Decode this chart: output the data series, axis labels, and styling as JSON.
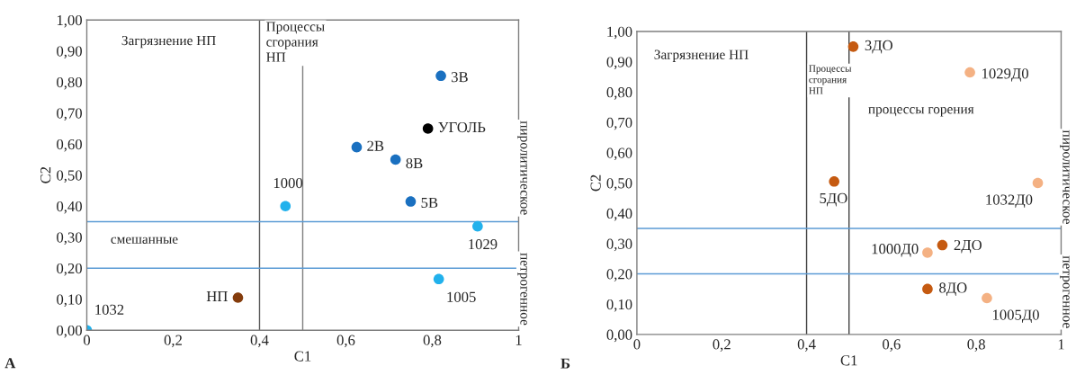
{
  "chart_data": [
    {
      "type": "scatter",
      "xlabel": "C1",
      "ylabel": "C2",
      "marker": "circle",
      "grid": false,
      "legend": false,
      "xlim": [
        0,
        1
      ],
      "ylim": [
        0,
        1
      ],
      "xticks": [
        0,
        {
          "value": 0.2,
          "label": "0,2"
        },
        {
          "value": 0.4,
          "label": "0,4"
        },
        {
          "value": 0.6,
          "label": "0,6"
        },
        {
          "value": 0.8,
          "label": "0,8"
        },
        1
      ],
      "yticks": [
        {
          "value": 0,
          "label": "0,00"
        },
        {
          "value": 0.1,
          "label": "0,10"
        },
        {
          "value": 0.2,
          "label": "0,20"
        },
        {
          "value": 0.3,
          "label": "0,30"
        },
        {
          "value": 0.4,
          "label": "0,40"
        },
        {
          "value": 0.5,
          "label": "0,50"
        },
        {
          "value": 0.6,
          "label": "0,60"
        },
        {
          "value": 0.7,
          "label": "0,70"
        },
        {
          "value": 0.8,
          "label": "0,80"
        },
        {
          "value": 0.9,
          "label": "0,90"
        },
        {
          "value": 1,
          "label": "1,00"
        }
      ],
      "ref_lines": [
        {
          "axis": "x",
          "value": 0.4,
          "color": "#595959"
        },
        {
          "axis": "x",
          "value": 0.5,
          "color": "#7f7f7f"
        },
        {
          "axis": "y",
          "value": 0.2,
          "color": "#5b9bd5"
        },
        {
          "axis": "y",
          "value": 0.35,
          "color": "#5b9bd5"
        }
      ],
      "annotations": [
        "Загрязнение НП",
        "Процессы\nсгорания\nНП",
        "смешанные",
        "пиролитическое",
        "петрогенное",
        "А"
      ],
      "series": [
        {
          "name": "1032",
          "color": "#21b1ec",
          "x": [
            0
          ],
          "values": [
            0
          ]
        },
        {
          "name": "НП",
          "color": "#843c0c",
          "x": [
            0.35
          ],
          "values": [
            0.105
          ]
        },
        {
          "name": "1000",
          "color": "#21b1ec",
          "x": [
            0.46
          ],
          "values": [
            0.4
          ]
        },
        {
          "name": "2В",
          "color": "#1a70c0",
          "x": [
            0.625
          ],
          "values": [
            0.59
          ]
        },
        {
          "name": "8В",
          "color": "#1a70c0",
          "x": [
            0.715
          ],
          "values": [
            0.55
          ]
        },
        {
          "name": "5В",
          "color": "#1a70c0",
          "x": [
            0.75
          ],
          "values": [
            0.415
          ]
        },
        {
          "name": "УГОЛЬ",
          "color": "#000000",
          "x": [
            0.79
          ],
          "values": [
            0.65
          ]
        },
        {
          "name": "3В",
          "color": "#1a70c0",
          "x": [
            0.82
          ],
          "values": [
            0.82
          ]
        },
        {
          "name": "1029",
          "color": "#21b1ec",
          "x": [
            0.905
          ],
          "values": [
            0.335
          ]
        },
        {
          "name": "1005",
          "color": "#21b1ec",
          "x": [
            0.815
          ],
          "values": [
            0.165
          ]
        }
      ]
    },
    {
      "type": "scatter",
      "xlabel": "C1",
      "ylabel": "C2",
      "marker": "circle",
      "grid": false,
      "legend": false,
      "xlim": [
        0,
        1
      ],
      "ylim": [
        0,
        1
      ],
      "xticks": [
        0,
        {
          "value": 0.2,
          "label": "0,2"
        },
        {
          "value": 0.4,
          "label": "0,4"
        },
        {
          "value": 0.6,
          "label": "0,6"
        },
        {
          "value": 0.8,
          "label": "0,8"
        },
        1
      ],
      "yticks": [
        {
          "value": 0,
          "label": "0,00"
        },
        {
          "value": 0.1,
          "label": "0,10"
        },
        {
          "value": 0.2,
          "label": "0,20"
        },
        {
          "value": 0.3,
          "label": "0,30"
        },
        {
          "value": 0.4,
          "label": "0,40"
        },
        {
          "value": 0.5,
          "label": "0,50"
        },
        {
          "value": 0.6,
          "label": "0,60"
        },
        {
          "value": 0.7,
          "label": "0,70"
        },
        {
          "value": 0.8,
          "label": "0,80"
        },
        {
          "value": 0.9,
          "label": "0,90"
        },
        {
          "value": 1,
          "label": "1,00"
        }
      ],
      "ref_lines": [
        {
          "axis": "x",
          "value": 0.4,
          "color": "#404040"
        },
        {
          "axis": "x",
          "value": 0.5,
          "color": "#404040"
        },
        {
          "axis": "y",
          "value": 0.2,
          "color": "#5b9bd5"
        },
        {
          "axis": "y",
          "value": 0.35,
          "color": "#5b9bd5"
        }
      ],
      "annotations": [
        "Загрязнение НП",
        "Процессы\nсгорания\nНП",
        "процессы горения",
        "пиролитическое",
        "петрогенное",
        "Б"
      ],
      "series": [
        {
          "name": "3ДО",
          "color": "#c55a11",
          "x": [
            0.51
          ],
          "values": [
            0.95
          ]
        },
        {
          "name": "1029Д0",
          "color": "#f4b183",
          "x": [
            0.785
          ],
          "values": [
            0.865
          ]
        },
        {
          "name": "5ДО",
          "color": "#c55a11",
          "x": [
            0.465
          ],
          "values": [
            0.505
          ]
        },
        {
          "name": "1032Д0",
          "color": "#f4b183",
          "x": [
            0.945
          ],
          "values": [
            0.5
          ]
        },
        {
          "name": "2ДО",
          "color": "#c55a11",
          "x": [
            0.72
          ],
          "values": [
            0.295
          ]
        },
        {
          "name": "1000Д0",
          "color": "#f4b183",
          "x": [
            0.685
          ],
          "values": [
            0.27
          ]
        },
        {
          "name": "8ДО",
          "color": "#c55a11",
          "x": [
            0.685
          ],
          "values": [
            0.15
          ]
        },
        {
          "name": "1005Д0",
          "color": "#f4b183",
          "x": [
            0.825
          ],
          "values": [
            0.12
          ]
        }
      ]
    }
  ]
}
